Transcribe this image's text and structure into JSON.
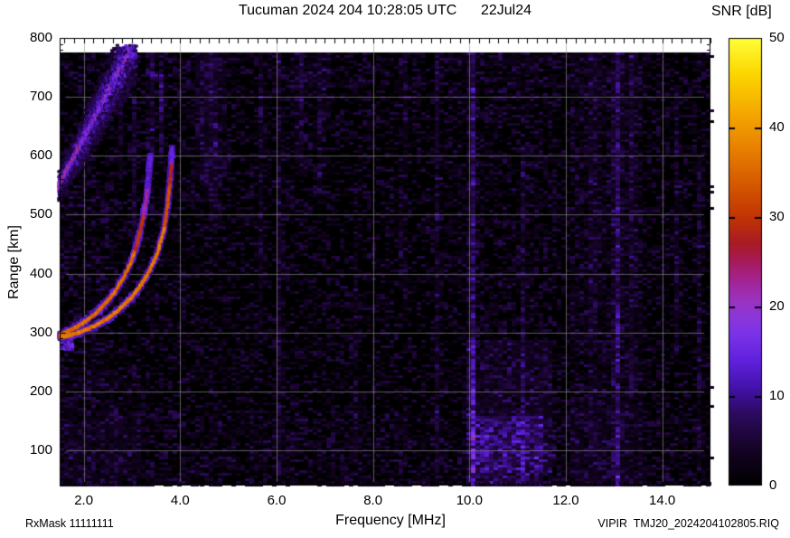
{
  "header": {
    "title": "Tucuman 2024 204 10:28:05 UTC      22Jul24",
    "station": "Tucuman",
    "date_label": "22Jul24",
    "time_label": "10:28:05 UTC",
    "day_of_year": "2024 204"
  },
  "footer": {
    "rx_mask": "RxMask 11111111",
    "data_file": "VIPIR  TMJ20_2024204102805.RIQ"
  },
  "chart_data": {
    "type": "heatmap",
    "title": "Tucuman 2024 204 10:28:05 UTC      22Jul24",
    "xlabel": "Frequency [MHz]",
    "ylabel": "Range [km]",
    "xlim": [
      1.5,
      15.0
    ],
    "ylim": [
      40,
      800
    ],
    "grid": true,
    "background": "#000000",
    "data_top_km": 774,
    "x_ticks": [
      {
        "v": 2,
        "label": "2.0"
      },
      {
        "v": 4,
        "label": "4.0"
      },
      {
        "v": 6,
        "label": "6.0"
      },
      {
        "v": 8,
        "label": "8.0"
      },
      {
        "v": 10,
        "label": "10.0"
      },
      {
        "v": 12,
        "label": "12.0"
      },
      {
        "v": 14,
        "label": "14.0"
      }
    ],
    "y_ticks": [
      {
        "v": 100,
        "label": "100"
      },
      {
        "v": 200,
        "label": "200"
      },
      {
        "v": 300,
        "label": "300"
      },
      {
        "v": 400,
        "label": "400"
      },
      {
        "v": 500,
        "label": "500"
      },
      {
        "v": 600,
        "label": "600"
      },
      {
        "v": 700,
        "label": "700"
      },
      {
        "v": 800,
        "label": "800"
      }
    ],
    "colorbar": {
      "title": "SNR [dB]",
      "lim": [
        0,
        50
      ],
      "ticks": [
        {
          "v": 0,
          "label": "0"
        },
        {
          "v": 10,
          "label": "10"
        },
        {
          "v": 20,
          "label": "20"
        },
        {
          "v": 30,
          "label": "30"
        },
        {
          "v": 40,
          "label": "40"
        },
        {
          "v": 50,
          "label": "50"
        }
      ],
      "colormap": [
        [
          0,
          "#000000"
        ],
        [
          4,
          "#140324"
        ],
        [
          8,
          "#2c0a5e"
        ],
        [
          11,
          "#4412aa"
        ],
        [
          14,
          "#6021dc"
        ],
        [
          17,
          "#7b33e8"
        ],
        [
          19,
          "#8d36d8"
        ],
        [
          21,
          "#9c32bc"
        ],
        [
          23,
          "#a32492"
        ],
        [
          25,
          "#a61b5c"
        ],
        [
          27,
          "#a81a26"
        ],
        [
          30,
          "#c03404"
        ],
        [
          34,
          "#d65c00"
        ],
        [
          38,
          "#e98300"
        ],
        [
          42,
          "#f5ab00"
        ],
        [
          46,
          "#fcd600"
        ],
        [
          50,
          "#ffff38"
        ]
      ]
    },
    "features": {
      "f_trace_o": {
        "label": "F-region O-mode echo trace",
        "critical_freq_mhz": 3.38,
        "core_profile": [
          [
            440,
            35
          ],
          [
            500,
            29
          ],
          [
            545,
            22
          ],
          [
            9999,
            13
          ]
        ],
        "points": [
          [
            1.5,
            297
          ],
          [
            1.65,
            301
          ],
          [
            1.85,
            309
          ],
          [
            2.05,
            320
          ],
          [
            2.25,
            333
          ],
          [
            2.45,
            349
          ],
          [
            2.65,
            370
          ],
          [
            2.85,
            396
          ],
          [
            3.0,
            424
          ],
          [
            3.12,
            454
          ],
          [
            3.22,
            490
          ],
          [
            3.3,
            530
          ],
          [
            3.35,
            568
          ],
          [
            3.38,
            600
          ]
        ]
      },
      "f_trace_x": {
        "label": "F-region X-mode echo trace",
        "critical_freq_mhz": 3.83,
        "core_profile": [
          [
            480,
            36
          ],
          [
            555,
            32
          ],
          [
            590,
            27
          ],
          [
            9999,
            14
          ]
        ],
        "points": [
          [
            1.5,
            291
          ],
          [
            1.75,
            296
          ],
          [
            2.0,
            303
          ],
          [
            2.25,
            312
          ],
          [
            2.5,
            324
          ],
          [
            2.75,
            340
          ],
          [
            3.0,
            360
          ],
          [
            3.2,
            382
          ],
          [
            3.4,
            410
          ],
          [
            3.55,
            441
          ],
          [
            3.66,
            475
          ],
          [
            3.74,
            515
          ],
          [
            3.79,
            555
          ],
          [
            3.82,
            590
          ],
          [
            3.83,
            615
          ]
        ]
      },
      "leading_edge_blob": {
        "f_range": [
          1.5,
          1.74
        ],
        "range_km": [
          274,
          292
        ]
      },
      "oblique_spread_band": {
        "label": "oblique spread echo band",
        "f_start": 1.45,
        "f_end": 3.05,
        "range_start_km": 548,
        "slope_km_per_mhz": 156,
        "half_width_km": 26,
        "half_width_grow_km_per_mhz": 28
      },
      "rfi_stripes": [
        {
          "f": 2.78,
          "w": 0.05,
          "amp": 4.0,
          "r0": 560,
          "r1": 780
        },
        {
          "f": 3.03,
          "w": 0.05,
          "amp": 5.0,
          "r0": 430,
          "r1": 700
        },
        {
          "f": 3.38,
          "w": 0.05,
          "amp": 7.0,
          "r0": 590,
          "r1": 780
        },
        {
          "f": 3.6,
          "w": 0.06,
          "amp": 6.0,
          "r0": 600,
          "r1": 740
        },
        {
          "f": 4.55,
          "w": 0.3,
          "amp": 2.2,
          "r0": 520,
          "r1": 790
        },
        {
          "f": 4.68,
          "w": 0.05,
          "amp": 4.5,
          "r0": 480,
          "r1": 780
        },
        {
          "f": 5.65,
          "w": 0.05,
          "amp": 3.0,
          "r0": 300,
          "r1": 780
        },
        {
          "f": 6.06,
          "w": 0.05,
          "amp": 4.0,
          "r0": 60,
          "r1": 780
        },
        {
          "f": 6.47,
          "w": 0.05,
          "amp": 5.5,
          "r0": 580,
          "r1": 785
        },
        {
          "f": 6.92,
          "w": 0.05,
          "amp": 4.5,
          "r0": 520,
          "r1": 785
        },
        {
          "f": 7.6,
          "w": 0.05,
          "amp": 3.0,
          "r0": 80,
          "r1": 500
        },
        {
          "f": 8.62,
          "w": 0.05,
          "amp": 4.5,
          "r0": 380,
          "r1": 780
        },
        {
          "f": 9.32,
          "w": 0.05,
          "amp": 3.5,
          "r0": 60,
          "r1": 780
        },
        {
          "f": 10.05,
          "w": 0.06,
          "amp": 8.5,
          "r0": 40,
          "r1": 790
        },
        {
          "f": 11.12,
          "w": 0.05,
          "amp": 4.0,
          "r0": 40,
          "r1": 620
        },
        {
          "f": 12.55,
          "w": 0.05,
          "amp": 4.5,
          "r0": 90,
          "r1": 780
        },
        {
          "f": 13.05,
          "w": 0.07,
          "amp": 7.5,
          "r0": 40,
          "r1": 790
        },
        {
          "f": 13.38,
          "w": 0.05,
          "amp": 4.0,
          "r0": 200,
          "r1": 770
        },
        {
          "f": 14.28,
          "w": 0.05,
          "amp": 3.5,
          "r0": 260,
          "r1": 720
        },
        {
          "f": 14.75,
          "w": 0.05,
          "amp": 3.0,
          "r0": 60,
          "r1": 600
        }
      ],
      "noise_regions": [
        {
          "f0": 1.5,
          "f1": 2.5,
          "r0": 250,
          "r1": 560,
          "amp": 1.3
        },
        {
          "f0": 1.5,
          "f1": 3.2,
          "r0": 40,
          "r1": 240,
          "amp": 1.6
        },
        {
          "f0": 9.9,
          "f1": 11.7,
          "r0": 60,
          "r1": 290,
          "amp": 3.2
        },
        {
          "f0": 10.0,
          "f1": 11.5,
          "r0": 40,
          "r1": 160,
          "amp": 5.0
        },
        {
          "f0": 12.1,
          "f1": 13.6,
          "r0": 40,
          "r1": 780,
          "amp": 1.6
        },
        {
          "f0": 9.6,
          "f1": 11.8,
          "r0": 300,
          "r1": 780,
          "amp": 0.8
        },
        {
          "f0": 4.3,
          "f1": 5.0,
          "r0": 560,
          "r1": 790,
          "amp": 1.2
        },
        {
          "f0": 6.3,
          "f1": 7.1,
          "r0": 560,
          "r1": 790,
          "amp": 1.0
        },
        {
          "f0": 1.5,
          "f1": 15.0,
          "r0": 40,
          "r1": 170,
          "amp": 1.2
        },
        {
          "f0": 1.5,
          "f1": 15.0,
          "r0": 700,
          "r1": 790,
          "amp": 0.7
        }
      ]
    }
  }
}
